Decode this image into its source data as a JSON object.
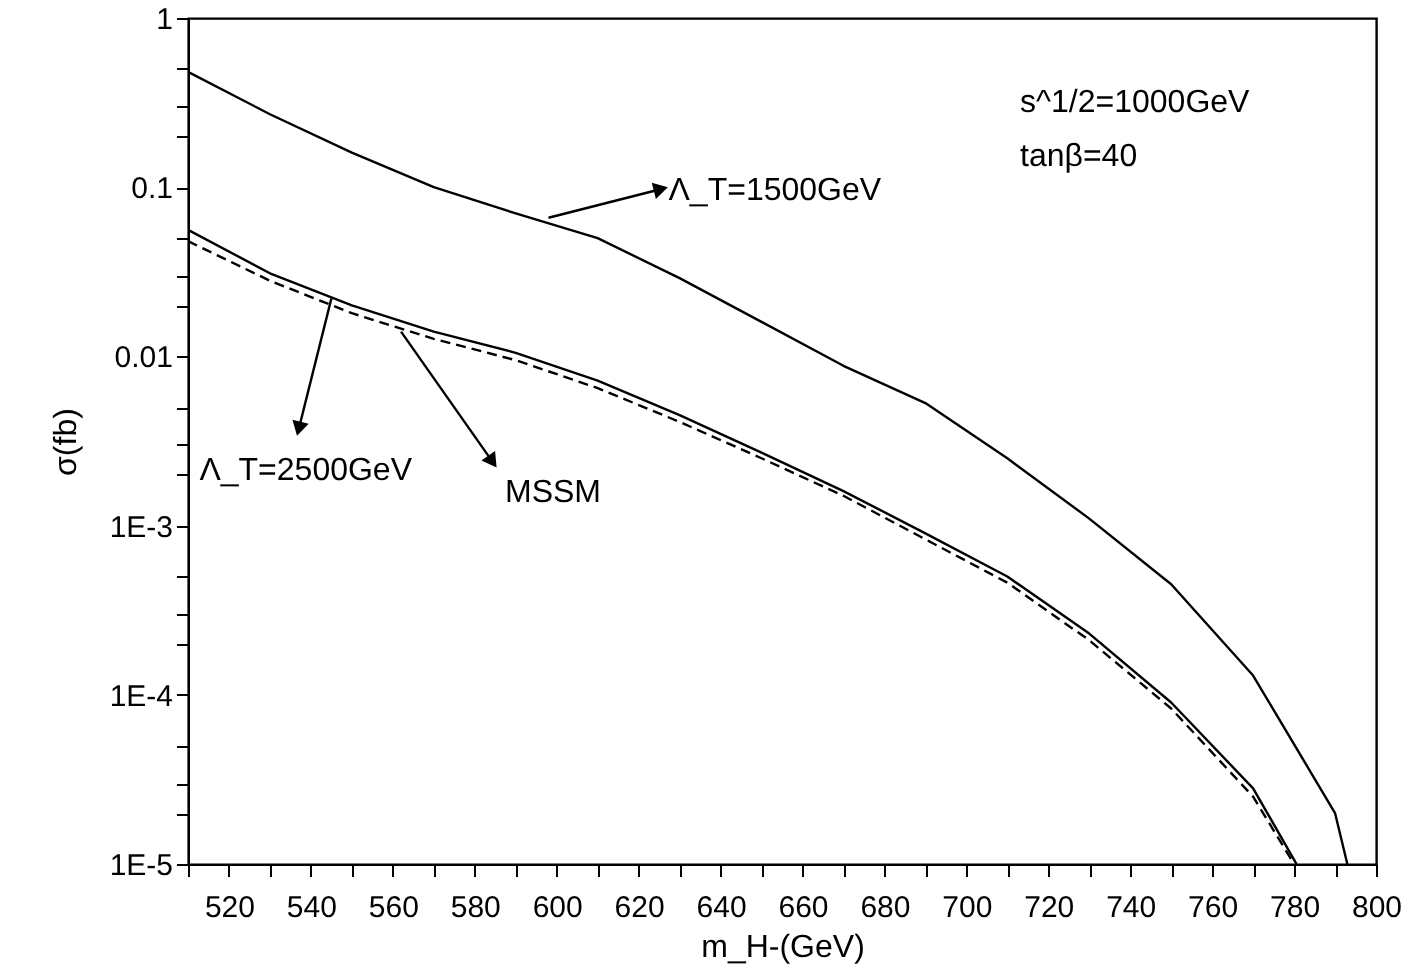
{
  "chart_data": {
    "type": "line",
    "xlabel": "m_H-(GeV)",
    "ylabel": "σ(fb)",
    "log": "y",
    "grid": false,
    "marker": "none",
    "xlim": [
      510,
      800
    ],
    "xticks": [
      {
        "value": 510,
        "label": null
      },
      520,
      {
        "value": 530,
        "label": null
      },
      540,
      {
        "value": 550,
        "label": null
      },
      560,
      {
        "value": 570,
        "label": null
      },
      580,
      {
        "value": 590,
        "label": null
      },
      600,
      {
        "value": 610,
        "label": null
      },
      620,
      {
        "value": 630,
        "label": null
      },
      640,
      {
        "value": 650,
        "label": null
      },
      660,
      {
        "value": 670,
        "label": null
      },
      680,
      {
        "value": 690,
        "label": null
      },
      700,
      {
        "value": 710,
        "label": null
      },
      720,
      {
        "value": 730,
        "label": null
      },
      740,
      {
        "value": 750,
        "label": null
      },
      760,
      {
        "value": 770,
        "label": null
      },
      780,
      {
        "value": 790,
        "label": null
      },
      800
    ],
    "ylim": [
      1e-05,
      1
    ],
    "yticks": [
      {
        "value": 1e-05,
        "label": "1E-5"
      },
      {
        "value": 2e-05,
        "label": null
      },
      {
        "value": 3e-05,
        "label": null
      },
      {
        "value": 5e-05,
        "label": null
      },
      {
        "value": 0.0001,
        "label": "1E-4"
      },
      {
        "value": 0.0002,
        "label": null
      },
      {
        "value": 0.0003,
        "label": null
      },
      {
        "value": 0.0005,
        "label": null
      },
      {
        "value": 0.001,
        "label": "1E-3"
      },
      {
        "value": 0.002,
        "label": null
      },
      {
        "value": 0.003,
        "label": null
      },
      {
        "value": 0.005,
        "label": null
      },
      0.01,
      {
        "value": 0.02,
        "label": null
      },
      {
        "value": 0.03,
        "label": null
      },
      {
        "value": 0.05,
        "label": null
      },
      0.1,
      {
        "value": 0.2,
        "label": null
      },
      {
        "value": 0.3,
        "label": null
      },
      {
        "value": 0.5,
        "label": null
      },
      1
    ],
    "series": [
      {
        "color": "#000000",
        "line_style": "solid",
        "x": [
          510,
          530,
          550,
          570,
          590,
          610,
          630,
          650,
          670,
          690,
          710,
          730,
          750,
          770,
          790,
          793
        ],
        "values": [
          0.48,
          0.27,
          0.16,
          0.1,
          0.07,
          0.05,
          0.029,
          0.016,
          0.0088,
          0.0053,
          0.0025,
          0.0011,
          0.00045,
          0.00013,
          2e-05,
          1e-05
        ]
      },
      {
        "color": "#000000",
        "line_style": "solid",
        "x": [
          510,
          530,
          550,
          570,
          590,
          610,
          630,
          650,
          670,
          690,
          710,
          730,
          750,
          770,
          780.6
        ],
        "values": [
          0.056,
          0.031,
          0.02,
          0.014,
          0.0105,
          0.0072,
          0.0045,
          0.0027,
          0.0016,
          0.0009,
          0.0005,
          0.00023,
          9e-05,
          2.8e-05,
          1e-05
        ]
      },
      {
        "color": "#000000",
        "line_style": "dashed",
        "x": [
          510,
          530,
          550,
          570,
          590,
          610,
          630,
          650,
          670,
          690,
          710,
          730,
          750,
          770,
          780
        ],
        "values": [
          0.048,
          0.028,
          0.018,
          0.0127,
          0.0095,
          0.0065,
          0.0041,
          0.0025,
          0.0015,
          0.00083,
          0.00046,
          0.00021,
          8.3e-05,
          2.5e-05,
          1e-05
        ]
      }
    ],
    "annotations": [
      {
        "text": "Λ_T=1500GeV",
        "x": 598,
        "y": 0.066
      },
      {
        "text": "Λ_T=2500GeV",
        "x": 545,
        "y": 0.022
      },
      {
        "text": "MSSM",
        "x": 562,
        "y": 0.014
      },
      "s^1/2=1000GeV",
      "tanβ=40"
    ]
  }
}
